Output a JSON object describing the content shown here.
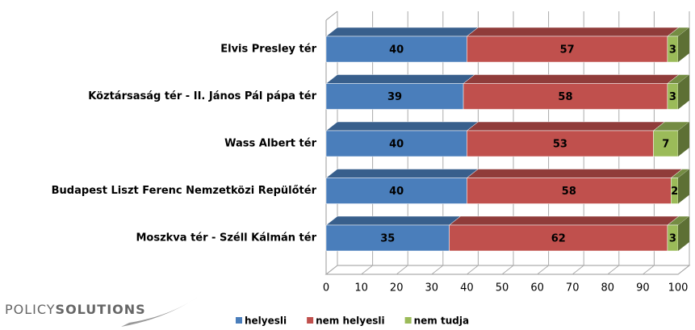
{
  "chart_data": {
    "type": "stacked_bar_3d",
    "orientation": "horizontal",
    "categories": [
      "Elvis Presley tér",
      "Köztársaság tér - II. János Pál pápa tér",
      "Wass Albert tér",
      "Budapest Liszt Ferenc Nemzetközi Repülőtér",
      "Moszkva tér - Széll Kálmán tér"
    ],
    "series": [
      {
        "name": "helyesli",
        "color": "#4a7ebb",
        "values": [
          40,
          39,
          40,
          40,
          35
        ]
      },
      {
        "name": "nem helyesli",
        "color": "#c0504d",
        "values": [
          57,
          58,
          53,
          58,
          62
        ]
      },
      {
        "name": "nem tudja",
        "color": "#9bbb59",
        "values": [
          3,
          3,
          7,
          2,
          3
        ]
      }
    ],
    "xlim": [
      0,
      100
    ],
    "xticks": [
      0,
      10,
      20,
      30,
      40,
      50,
      60,
      70,
      80,
      90,
      100
    ],
    "grid": true,
    "legend": "bottom"
  },
  "logo": {
    "light": "POLICY",
    "bold": "SOLUTIONS"
  }
}
